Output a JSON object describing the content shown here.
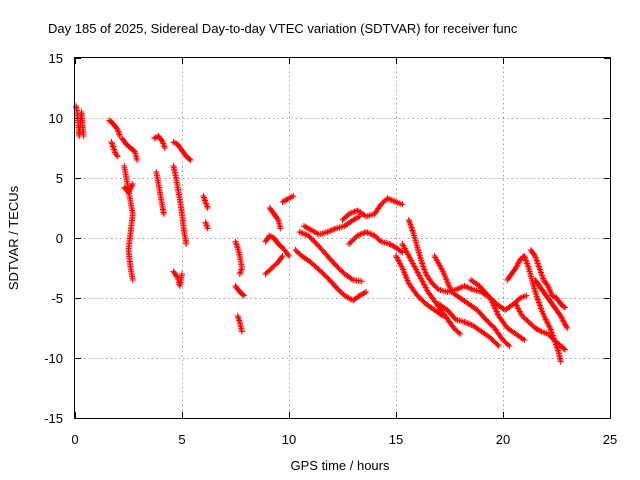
{
  "chart_data": {
    "type": "scatter",
    "title": "Day 185 of 2025, Sidereal Day-to-day VTEC variation (SDTVAR) for receiver func",
    "xlabel": "GPS time / hours",
    "ylabel": "SDTVAR / TECUs",
    "xlim": [
      0,
      25
    ],
    "ylim": [
      -15,
      15
    ],
    "xticks": [
      0,
      5,
      10,
      15,
      20,
      25
    ],
    "yticks": [
      -15,
      -10,
      -5,
      0,
      5,
      10,
      15
    ],
    "grid": true,
    "marker": "+",
    "series_color": "#ff0000",
    "segments": [
      [
        [
          0.05,
          11.0
        ],
        [
          0.1,
          10.5
        ],
        [
          0.15,
          9.5
        ],
        [
          0.2,
          8.5
        ],
        [
          0.3,
          10.5
        ],
        [
          0.35,
          9.5
        ],
        [
          0.4,
          8.5
        ]
      ],
      [
        [
          1.6,
          9.8
        ],
        [
          1.8,
          9.5
        ],
        [
          2.0,
          9.0
        ],
        [
          2.1,
          8.5
        ]
      ],
      [
        [
          1.7,
          8.0
        ],
        [
          1.8,
          7.5
        ],
        [
          1.9,
          7.0
        ],
        [
          2.0,
          6.8
        ]
      ],
      [
        [
          2.2,
          8.3
        ],
        [
          2.4,
          7.8
        ],
        [
          2.6,
          7.5
        ],
        [
          2.8,
          7.2
        ],
        [
          2.9,
          6.5
        ]
      ],
      [
        [
          2.3,
          6.0
        ],
        [
          2.4,
          5.0
        ],
        [
          2.5,
          4.0
        ],
        [
          2.6,
          3.0
        ],
        [
          2.7,
          2.0
        ],
        [
          2.6,
          0.5
        ],
        [
          2.5,
          -1.0
        ],
        [
          2.6,
          -2.5
        ],
        [
          2.7,
          -3.5
        ]
      ],
      [
        [
          2.3,
          4.2
        ],
        [
          2.5,
          3.8
        ],
        [
          2.7,
          4.5
        ]
      ],
      [
        [
          3.7,
          8.3
        ],
        [
          3.9,
          8.5
        ],
        [
          4.1,
          8.0
        ],
        [
          4.2,
          7.5
        ]
      ],
      [
        [
          3.8,
          5.5
        ],
        [
          3.9,
          4.5
        ],
        [
          4.0,
          3.5
        ],
        [
          4.1,
          2.5
        ],
        [
          4.15,
          2.0
        ]
      ],
      [
        [
          4.6,
          8.0
        ],
        [
          4.8,
          7.8
        ],
        [
          5.0,
          7.3
        ],
        [
          5.2,
          6.8
        ],
        [
          5.4,
          6.5
        ]
      ],
      [
        [
          4.6,
          6.0
        ],
        [
          4.7,
          5.2
        ],
        [
          4.8,
          4.2
        ],
        [
          4.9,
          3.2
        ],
        [
          5.0,
          2.0
        ],
        [
          5.1,
          0.5
        ],
        [
          5.2,
          -0.5
        ]
      ],
      [
        [
          4.6,
          -2.8
        ],
        [
          4.8,
          -3.3
        ],
        [
          4.9,
          -4.0
        ],
        [
          5.0,
          -3.0
        ]
      ],
      [
        [
          6.0,
          3.5
        ],
        [
          6.1,
          3.0
        ],
        [
          6.2,
          2.5
        ]
      ],
      [
        [
          6.1,
          1.3
        ],
        [
          6.2,
          0.8
        ]
      ],
      [
        [
          7.5,
          -0.3
        ],
        [
          7.6,
          -0.8
        ],
        [
          7.7,
          -1.5
        ],
        [
          7.8,
          -2.5
        ],
        [
          7.7,
          -3.0
        ]
      ],
      [
        [
          7.5,
          -4.0
        ],
        [
          7.7,
          -4.5
        ],
        [
          7.9,
          -4.8
        ]
      ],
      [
        [
          7.6,
          -6.5
        ],
        [
          7.7,
          -7.0
        ],
        [
          7.8,
          -7.8
        ]
      ],
      [
        [
          8.9,
          -3.0
        ],
        [
          9.2,
          -2.5
        ],
        [
          9.5,
          -2.0
        ],
        [
          9.7,
          -1.5
        ]
      ],
      [
        [
          8.9,
          -0.3
        ],
        [
          9.1,
          0.2
        ],
        [
          9.3,
          0.0
        ],
        [
          9.5,
          -0.5
        ],
        [
          9.7,
          -0.8
        ],
        [
          10.0,
          -1.5
        ]
      ],
      [
        [
          9.1,
          2.5
        ],
        [
          9.3,
          2.0
        ],
        [
          9.5,
          1.5
        ],
        [
          9.6,
          0.8
        ]
      ],
      [
        [
          9.7,
          3.0
        ],
        [
          10.0,
          3.3
        ],
        [
          10.2,
          3.5
        ]
      ],
      [
        [
          10.3,
          -1.0
        ],
        [
          10.6,
          -1.5
        ],
        [
          11.0,
          -2.0
        ],
        [
          11.5,
          -2.8
        ],
        [
          11.9,
          -3.5
        ],
        [
          12.3,
          -4.3
        ],
        [
          12.6,
          -4.8
        ],
        [
          13.0,
          -5.2
        ],
        [
          13.3,
          -4.8
        ],
        [
          13.6,
          -4.5
        ]
      ],
      [
        [
          10.5,
          0.5
        ],
        [
          10.9,
          0.2
        ],
        [
          11.3,
          -0.5
        ],
        [
          11.8,
          -1.5
        ],
        [
          12.2,
          -2.3
        ],
        [
          12.6,
          -3.0
        ],
        [
          13.0,
          -3.5
        ],
        [
          13.4,
          -3.6
        ]
      ],
      [
        [
          10.7,
          1.0
        ],
        [
          11.0,
          0.7
        ],
        [
          11.4,
          0.3
        ],
        [
          11.8,
          0.5
        ],
        [
          12.2,
          0.8
        ],
        [
          12.6,
          1.0
        ],
        [
          13.0,
          1.5
        ],
        [
          13.3,
          1.8
        ]
      ],
      [
        [
          12.5,
          1.5
        ],
        [
          12.8,
          2.0
        ],
        [
          13.2,
          2.3
        ],
        [
          13.6,
          1.8
        ],
        [
          14.0,
          2.0
        ],
        [
          14.3,
          2.8
        ],
        [
          14.6,
          3.3
        ],
        [
          15.0,
          3.0
        ],
        [
          15.3,
          2.8
        ]
      ],
      [
        [
          12.8,
          -0.5
        ],
        [
          13.2,
          0.2
        ],
        [
          13.6,
          0.5
        ],
        [
          14.0,
          0.2
        ],
        [
          14.3,
          -0.3
        ],
        [
          14.7,
          -0.5
        ],
        [
          15.0,
          -0.8
        ],
        [
          15.3,
          -1.2
        ]
      ],
      [
        [
          15.0,
          -1.5
        ],
        [
          15.3,
          -2.5
        ],
        [
          15.6,
          -3.8
        ],
        [
          16.0,
          -4.8
        ],
        [
          16.4,
          -5.5
        ],
        [
          16.8,
          -6.0
        ],
        [
          17.2,
          -6.5
        ]
      ],
      [
        [
          15.3,
          -0.5
        ],
        [
          15.6,
          -1.5
        ],
        [
          15.9,
          -2.5
        ],
        [
          16.2,
          -3.5
        ],
        [
          16.5,
          -4.5
        ],
        [
          16.9,
          -5.5
        ],
        [
          17.3,
          -6.5
        ],
        [
          17.7,
          -7.5
        ],
        [
          18.0,
          -8.0
        ]
      ],
      [
        [
          15.6,
          1.5
        ],
        [
          15.8,
          0.5
        ],
        [
          16.0,
          -0.8
        ],
        [
          16.2,
          -2.0
        ],
        [
          16.4,
          -3.0
        ],
        [
          16.7,
          -3.8
        ],
        [
          17.0,
          -4.3
        ],
        [
          17.4,
          -4.5
        ],
        [
          17.8,
          -4.3
        ],
        [
          18.2,
          -4.0
        ],
        [
          18.6,
          -4.3
        ],
        [
          19.0,
          -4.5
        ],
        [
          19.4,
          -5.0
        ],
        [
          19.8,
          -6.5
        ],
        [
          20.2,
          -7.5
        ],
        [
          20.6,
          -8.0
        ],
        [
          21.0,
          -8.5
        ]
      ],
      [
        [
          16.8,
          -1.5
        ],
        [
          17.2,
          -2.8
        ],
        [
          17.6,
          -4.5
        ],
        [
          18.0,
          -5.0
        ],
        [
          18.4,
          -5.5
        ],
        [
          18.8,
          -6.0
        ],
        [
          19.2,
          -6.8
        ],
        [
          19.6,
          -7.5
        ],
        [
          20.0,
          -8.5
        ],
        [
          20.3,
          -9.0
        ]
      ],
      [
        [
          17.0,
          -5.5
        ],
        [
          17.4,
          -6.0
        ],
        [
          17.8,
          -6.8
        ],
        [
          18.2,
          -7.0
        ],
        [
          18.6,
          -7.3
        ],
        [
          19.0,
          -7.8
        ],
        [
          19.4,
          -8.3
        ],
        [
          19.8,
          -9.0
        ]
      ],
      [
        [
          18.5,
          -3.5
        ],
        [
          18.9,
          -4.0
        ],
        [
          19.3,
          -4.8
        ],
        [
          19.7,
          -5.5
        ],
        [
          20.1,
          -6.0
        ],
        [
          20.5,
          -5.5
        ],
        [
          20.8,
          -5.0
        ],
        [
          21.1,
          -4.8
        ]
      ],
      [
        [
          20.2,
          -3.5
        ],
        [
          20.4,
          -3.0
        ],
        [
          20.6,
          -2.5
        ],
        [
          20.8,
          -1.8
        ],
        [
          21.0,
          -1.5
        ],
        [
          21.2,
          -2.5
        ],
        [
          21.4,
          -3.8
        ],
        [
          21.6,
          -5.0
        ],
        [
          21.8,
          -6.0
        ],
        [
          22.0,
          -6.8
        ],
        [
          22.2,
          -7.5
        ],
        [
          22.4,
          -8.5
        ],
        [
          22.6,
          -9.5
        ],
        [
          22.7,
          -10.3
        ]
      ],
      [
        [
          21.3,
          -1.0
        ],
        [
          21.5,
          -1.5
        ],
        [
          21.7,
          -2.5
        ],
        [
          21.9,
          -3.5
        ],
        [
          22.1,
          -4.0
        ],
        [
          22.3,
          -4.8
        ],
        [
          22.5,
          -5.0
        ],
        [
          22.7,
          -5.5
        ],
        [
          22.9,
          -5.8
        ]
      ],
      [
        [
          21.5,
          -3.5
        ],
        [
          21.7,
          -4.0
        ],
        [
          21.9,
          -4.5
        ],
        [
          22.1,
          -5.0
        ],
        [
          22.3,
          -5.5
        ],
        [
          22.5,
          -6.0
        ],
        [
          22.7,
          -6.5
        ],
        [
          22.9,
          -7.2
        ],
        [
          23.0,
          -7.5
        ]
      ],
      [
        [
          20.6,
          -5.5
        ],
        [
          20.9,
          -6.5
        ],
        [
          21.2,
          -7.0
        ],
        [
          21.5,
          -7.5
        ],
        [
          21.8,
          -7.8
        ],
        [
          22.1,
          -8.0
        ],
        [
          22.4,
          -8.5
        ],
        [
          22.7,
          -9.0
        ],
        [
          22.9,
          -9.3
        ]
      ]
    ]
  }
}
